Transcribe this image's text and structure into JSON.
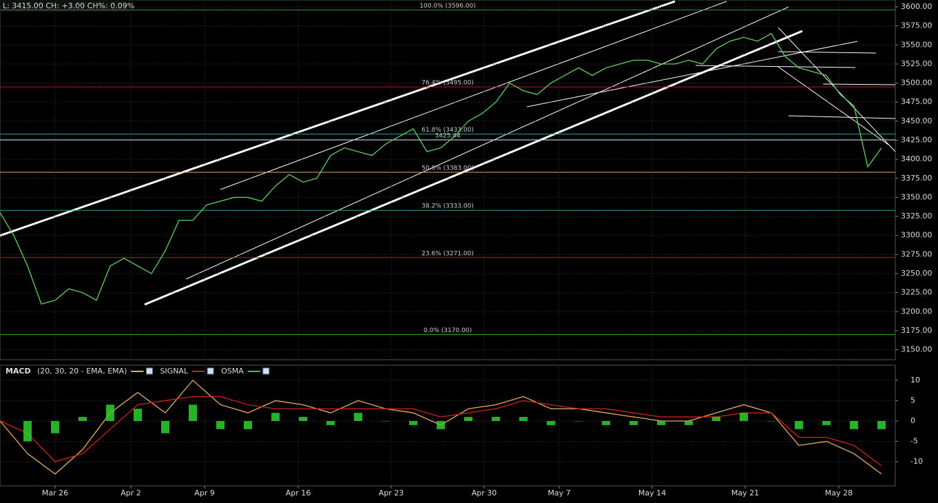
{
  "header": "L: 3415.00 CH: +3.00 CH%: 0.09%",
  "chart_data": [
    {
      "type": "line",
      "xlim": [
        0,
        130
      ],
      "ylim": [
        3137,
        3609
      ],
      "yticks": [
        {
          "value": 3150,
          "label": "3150.00"
        },
        {
          "value": 3175,
          "label": "3175.00"
        },
        {
          "value": 3200,
          "label": "3200.00"
        },
        {
          "value": 3225,
          "label": "3225.00"
        },
        {
          "value": 3250,
          "label": "3250.00"
        },
        {
          "value": 3275,
          "label": "3275.00"
        },
        {
          "value": 3300,
          "label": "3300.00"
        },
        {
          "value": 3325,
          "label": "3325.00"
        },
        {
          "value": 3350,
          "label": "3350.00"
        },
        {
          "value": 3375,
          "label": "3375.00"
        },
        {
          "value": 3400,
          "label": "3400.00"
        },
        {
          "value": 3425,
          "label": "3425.00"
        },
        {
          "value": 3450,
          "label": "3450.00"
        },
        {
          "value": 3475,
          "label": "3475.00"
        },
        {
          "value": 3500,
          "label": "3500.00"
        },
        {
          "value": 3525,
          "label": "3525.00"
        },
        {
          "value": 3550,
          "label": "3550.00"
        },
        {
          "value": 3575,
          "label": "3575.00"
        },
        {
          "value": 3600,
          "label": "3600.00"
        }
      ],
      "grid": true,
      "levels": [
        {
          "value": 3596,
          "label": "100.0% (3596.00)",
          "color": "#2e9b2e"
        },
        {
          "value": 3495,
          "label": "76.4% (3495.00)",
          "color": "#b02020"
        },
        {
          "value": 3433,
          "label": "61.8% (3433.00)",
          "color": "#2aa0a0"
        },
        {
          "value": 3425.44,
          "label": "3425.44",
          "color": "#e8e8e8"
        },
        {
          "value": 3383,
          "label": "50.0% (3383.00)",
          "color": "#e0b070"
        },
        {
          "value": 3333,
          "label": "38.2% (3333.00)",
          "color": "#2aa0a0"
        },
        {
          "value": 3271,
          "label": "23.6% (3271.00)",
          "color": "#b02020"
        },
        {
          "value": 3170,
          "label": "0.0% (3170.00)",
          "color": "#2e9b2e"
        }
      ],
      "series": [
        {
          "color": "#5fd35f",
          "x": [
            0,
            2,
            4,
            6,
            8,
            10,
            12,
            14,
            16,
            18,
            20,
            22,
            24,
            26,
            28,
            30,
            32,
            34,
            36,
            38,
            40,
            42,
            44,
            46,
            48,
            50,
            52,
            54,
            56,
            58,
            60,
            62,
            64,
            66,
            68,
            70,
            72,
            74,
            76,
            78,
            80,
            82,
            84,
            86,
            88,
            90,
            92,
            94,
            96,
            98,
            100,
            102,
            104,
            106,
            108,
            110,
            112,
            114,
            116,
            118,
            120,
            122,
            124,
            126,
            128
          ],
          "values": [
            3330,
            3300,
            3260,
            3210,
            3215,
            3230,
            3225,
            3215,
            3260,
            3270,
            3260,
            3250,
            3280,
            3320,
            3320,
            3340,
            3345,
            3350,
            3350,
            3345,
            3365,
            3380,
            3370,
            3375,
            3405,
            3415,
            3410,
            3405,
            3420,
            3430,
            3440,
            3410,
            3415,
            3430,
            3450,
            3460,
            3475,
            3500,
            3490,
            3485,
            3500,
            3510,
            3520,
            3510,
            3520,
            3525,
            3530,
            3530,
            3525,
            3525,
            3530,
            3525,
            3545,
            3555,
            3560,
            3555,
            3565,
            3535,
            3520,
            3515,
            3510,
            3485,
            3470,
            3390,
            3415
          ]
        }
      ]
    },
    {
      "type": "macd",
      "title": "MACD",
      "xlim": [
        0,
        130
      ],
      "ylim": [
        -15.9,
        13.7
      ],
      "yticks": [
        10,
        5,
        0,
        -5,
        -10
      ],
      "xticks": [
        {
          "value": 8,
          "label": "Mar 26"
        },
        {
          "value": 19,
          "label": "Apr 2"
        },
        {
          "value": 29.7,
          "label": "Apr 9"
        },
        {
          "value": 43.3,
          "label": "Apr 16"
        },
        {
          "value": 56.8,
          "label": "Apr 23"
        },
        {
          "value": 70.3,
          "label": "Apr 30"
        },
        {
          "value": 81.2,
          "label": "May 7"
        },
        {
          "value": 94.7,
          "label": "May 14"
        },
        {
          "value": 108.2,
          "label": "May 21"
        },
        {
          "value": 121.8,
          "label": "May 28"
        }
      ],
      "grid": true,
      "x": [
        0,
        4,
        8,
        12,
        16,
        20,
        24,
        28,
        32,
        36,
        40,
        44,
        48,
        52,
        56,
        60,
        64,
        68,
        72,
        76,
        80,
        84,
        88,
        92,
        96,
        100,
        104,
        108,
        112,
        116,
        120,
        124,
        128
      ],
      "series": [
        {
          "name": "(20, 30, 20 - EMA, EMA)",
          "color": "#e8b060",
          "mark": "line",
          "values": [
            0,
            -8,
            -13,
            -7,
            2,
            7,
            2,
            10,
            4,
            2,
            5,
            4,
            2,
            5,
            3,
            2,
            -1,
            3,
            4,
            6,
            3,
            3,
            2,
            1,
            0,
            0,
            2,
            4,
            2,
            -6,
            -5,
            -8,
            -13
          ]
        },
        {
          "name": "SIGNAL",
          "color": "#d02020",
          "mark": "line",
          "values": [
            0,
            -3,
            -10,
            -8,
            -2,
            4,
            5,
            6,
            6,
            4,
            3,
            3,
            3,
            3,
            3,
            3,
            1,
            2,
            3,
            5,
            4,
            3,
            3,
            2,
            1,
            1,
            1,
            2,
            2,
            -4,
            -4,
            -6,
            -11
          ]
        },
        {
          "name": "OSMA",
          "color": "#30d030",
          "mark": "bar",
          "values": [
            0,
            -5,
            -3,
            1,
            4,
            3,
            -3,
            4,
            -2,
            -2,
            2,
            1,
            -1,
            2,
            0,
            -1,
            -2,
            1,
            1,
            1,
            -1,
            0,
            -1,
            -1,
            -1,
            -1,
            1,
            2,
            0,
            -2,
            -1,
            -2,
            -2
          ]
        }
      ]
    }
  ]
}
